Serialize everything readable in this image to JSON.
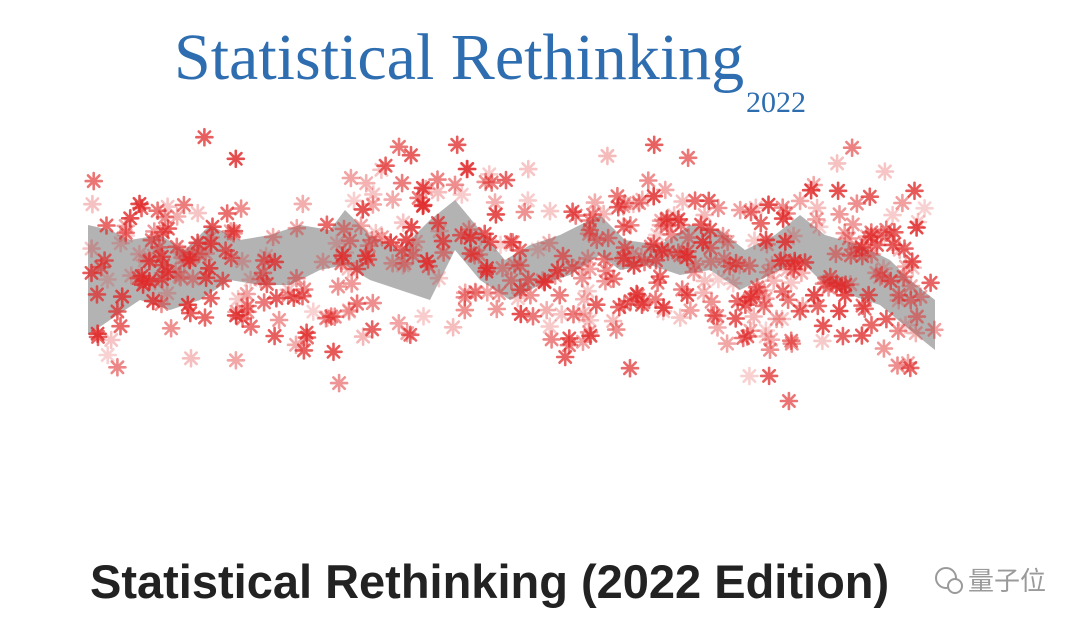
{
  "banner": {
    "title": "Statistical Rethinking",
    "year": "2022"
  },
  "heading": "Statistical Rethinking (2022 Edition)",
  "watermark": "量子位"
}
